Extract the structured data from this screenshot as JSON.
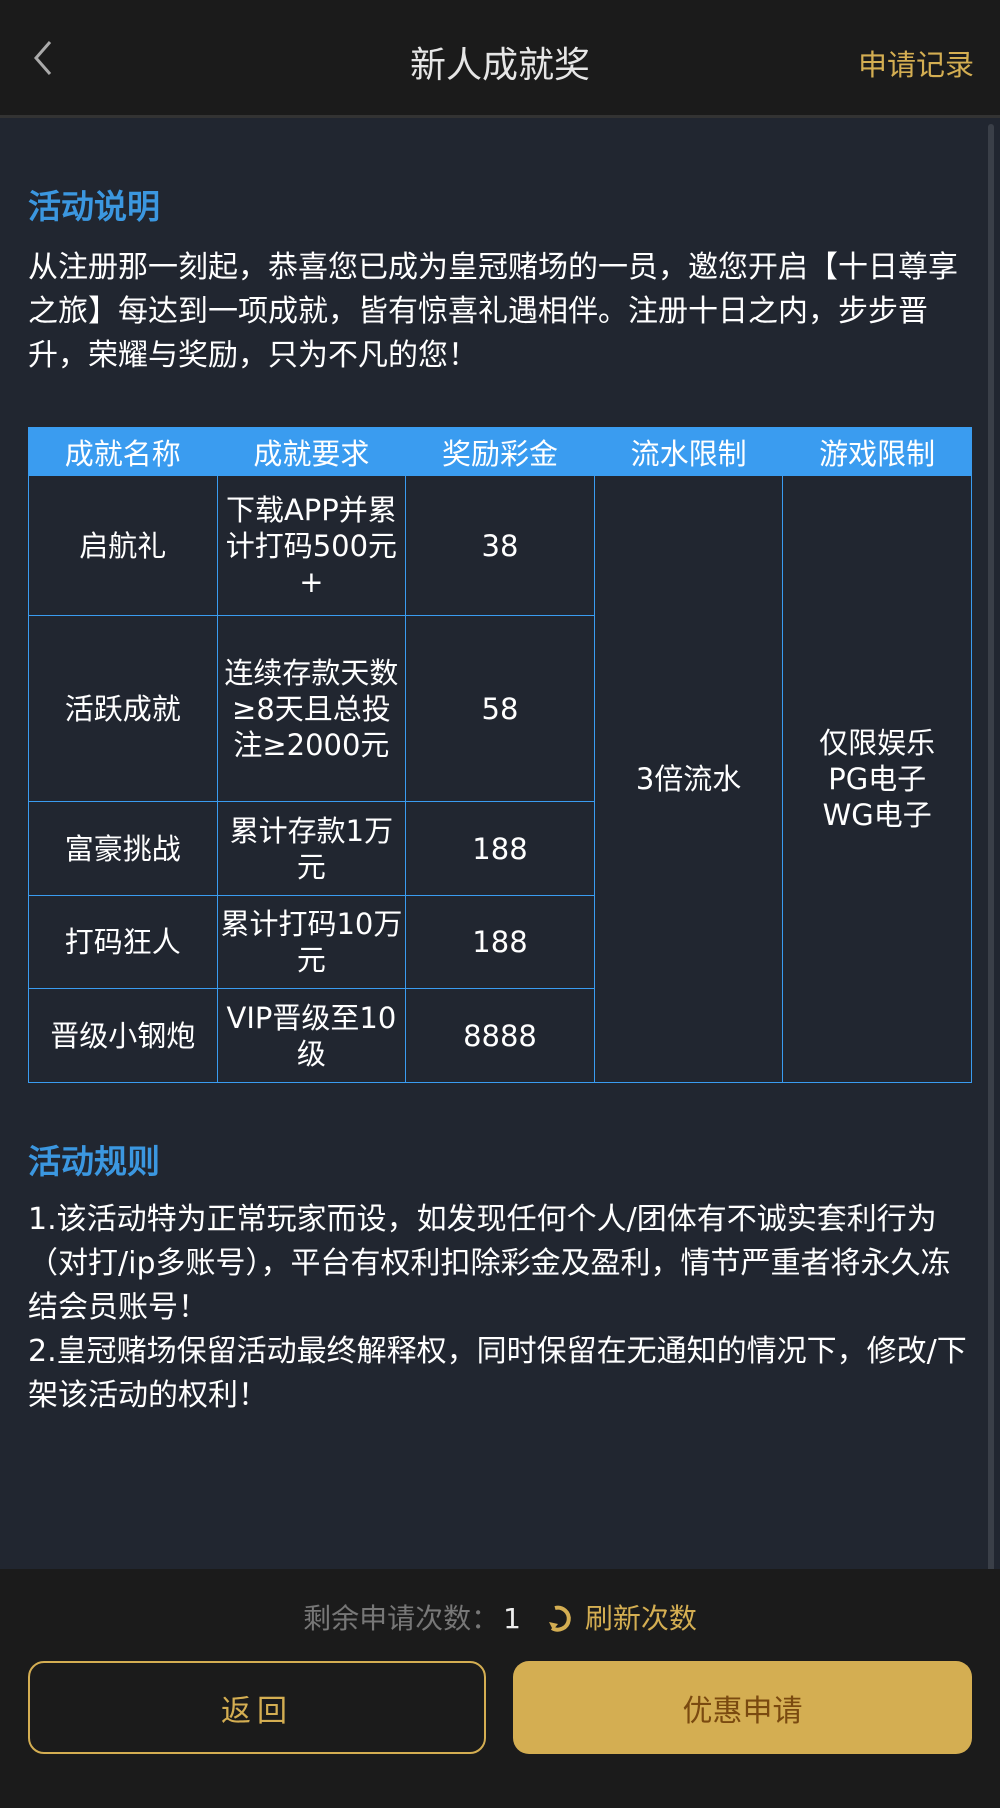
{
  "header": {
    "title": "新人成就奖",
    "records_label": "申请记录",
    "back_icon": "chevron-left-icon"
  },
  "description": {
    "heading": "活动说明",
    "text": "从注册那一刻起，恭喜您已成为皇冠赌场的一员，邀您开启【十日尊享之旅】每达到一项成就，皆有惊喜礼遇相伴。注册十日之内，步步晋升，荣耀与奖励，只为不凡的您！"
  },
  "table": {
    "headers": [
      "成就名称",
      "成就要求",
      "奖励彩金",
      "流水限制",
      "游戏限制"
    ],
    "rows": [
      {
        "name": "启航礼",
        "requirement": "下载APP并累计打码500元+",
        "bonus": "38"
      },
      {
        "name": "活跃成就",
        "requirement": "连续存款天数≥8天且总投注≥2000元",
        "bonus": "58"
      },
      {
        "name": "富豪挑战",
        "requirement": "累计存款1万元",
        "bonus": "188"
      },
      {
        "name": "打码狂人",
        "requirement": "累计打码10万元",
        "bonus": "188"
      },
      {
        "name": "晋级小钢炮",
        "requirement": "VIP晋级至10级",
        "bonus": "8888"
      }
    ],
    "turnover": "3倍流水",
    "game_limit": [
      "仅限娱乐",
      "PG电子",
      "WG电子"
    ]
  },
  "rules": {
    "heading": "活动规则",
    "items": [
      "1.该活动特为正常玩家而设，如发现任何个人/团体有不诚实套利行为（对打/ip多账号），平台有权利扣除彩金及盈利，情节严重者将永久冻结会员账号！",
      "2.皇冠赌场保留活动最终解释权，同时保留在无通知的情况下，修改/下架该活动的权利！"
    ]
  },
  "footer": {
    "remaining_label": "剩余申请次数：",
    "remaining_count": "1",
    "refresh_label": "刷新次数",
    "back_button": "返回",
    "apply_button": "优惠申请"
  },
  "colors": {
    "accent_gold": "#d4ae52",
    "heading_blue": "#3b97e0",
    "table_blue": "#3a9cf0"
  }
}
